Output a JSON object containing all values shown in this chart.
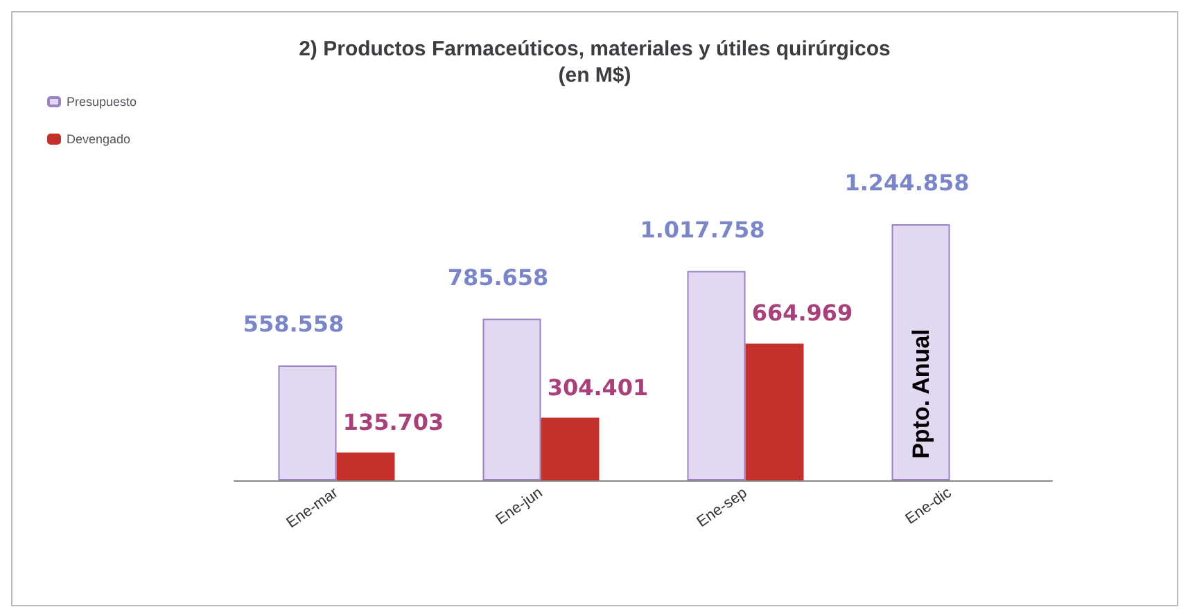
{
  "chart_data": {
    "type": "bar",
    "title": "2) Productos Farmaceúticos, materiales y útiles quirúrgicos\n(en M$)",
    "categories": [
      "Ene-mar",
      "Ene-jun",
      "Ene-sep",
      "Ene-dic"
    ],
    "series": [
      {
        "name": "Presupuesto",
        "color": "#e2d8f2",
        "values": [
          558558,
          785658,
          1017758,
          1244858
        ],
        "value_labels": [
          "558.558",
          "785.658",
          "1.017.758",
          "1.244.858"
        ]
      },
      {
        "name": "Devengado",
        "color": "#c4302c",
        "values": [
          135703,
          304401,
          664969,
          null
        ],
        "value_labels": [
          "135.703",
          "304.401",
          "664.969",
          null
        ]
      }
    ],
    "legend": "top left",
    "annotations": [
      "Ppto. Anual"
    ]
  }
}
